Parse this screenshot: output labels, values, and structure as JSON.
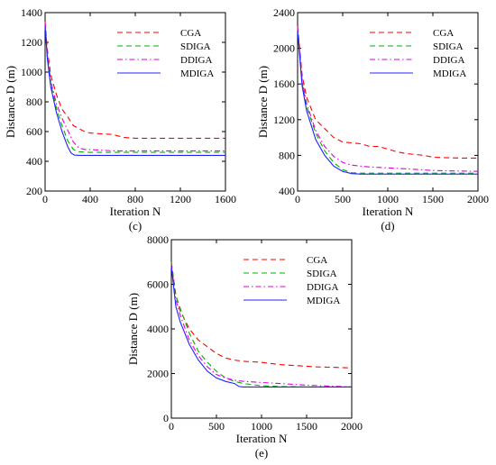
{
  "chart_data": [
    {
      "type": "line",
      "panel_label": "(c)",
      "xlabel": "Iteration N",
      "ylabel": "Distance D (m)",
      "xlim": [
        0,
        1600
      ],
      "ylim": [
        200,
        1400
      ],
      "xticks": [
        0,
        400,
        800,
        1200,
        1600
      ],
      "yticks": [
        200,
        400,
        600,
        800,
        1000,
        1200,
        1400
      ],
      "legend_position": "top-right",
      "series": [
        {
          "name": "CGA",
          "color": "#ff0000",
          "style": "dashed",
          "x": [
            0,
            20,
            50,
            100,
            150,
            200,
            250,
            300,
            350,
            400,
            500,
            600,
            700,
            800,
            1000,
            1200,
            1400,
            1600
          ],
          "y": [
            1340,
            1150,
            980,
            850,
            750,
            700,
            640,
            620,
            600,
            590,
            585,
            580,
            560,
            555,
            555,
            555,
            555,
            555
          ]
        },
        {
          "name": "SDIGA",
          "color": "#00b000",
          "style": "dashed",
          "x": [
            0,
            20,
            50,
            100,
            150,
            200,
            250,
            300,
            350,
            400,
            500,
            600,
            800,
            1000,
            1600
          ],
          "y": [
            1320,
            1100,
            920,
            760,
            640,
            540,
            480,
            465,
            462,
            460,
            460,
            460,
            460,
            460,
            460
          ]
        },
        {
          "name": "DDIGA",
          "color": "#e000e0",
          "style": "dashdot",
          "x": [
            0,
            20,
            50,
            100,
            150,
            200,
            250,
            300,
            350,
            400,
            500,
            600,
            800,
            1000,
            1600
          ],
          "y": [
            1330,
            1120,
            940,
            790,
            690,
            610,
            530,
            490,
            480,
            478,
            475,
            470,
            470,
            470,
            470
          ]
        },
        {
          "name": "MDIGA",
          "color": "#2020ff",
          "style": "solid",
          "x": [
            0,
            20,
            50,
            100,
            150,
            200,
            230,
            260,
            300,
            400,
            600,
            800,
            1000,
            1600
          ],
          "y": [
            1310,
            1090,
            900,
            730,
            600,
            500,
            455,
            442,
            440,
            440,
            440,
            440,
            440,
            440
          ]
        }
      ]
    },
    {
      "type": "line",
      "panel_label": "(d)",
      "xlabel": "Iteration N",
      "ylabel": "Distance D (m)",
      "xlim": [
        0,
        2000
      ],
      "ylim": [
        400,
        2400
      ],
      "xticks": [
        0,
        500,
        1000,
        1500,
        2000
      ],
      "yticks": [
        400,
        800,
        1200,
        1600,
        2000,
        2400
      ],
      "legend_position": "top-right",
      "series": [
        {
          "name": "CGA",
          "color": "#ff0000",
          "style": "dashed",
          "x": [
            0,
            50,
            100,
            200,
            300,
            400,
            500,
            600,
            700,
            800,
            900,
            1000,
            1100,
            1200,
            1300,
            1400,
            1500,
            1600,
            1800,
            2000
          ],
          "y": [
            2250,
            1700,
            1450,
            1200,
            1100,
            1000,
            950,
            940,
            930,
            900,
            900,
            870,
            840,
            820,
            810,
            800,
            780,
            775,
            770,
            770
          ]
        },
        {
          "name": "SDIGA",
          "color": "#00b000",
          "style": "dashed",
          "x": [
            0,
            50,
            100,
            200,
            300,
            400,
            500,
            600,
            700,
            800,
            1000,
            1500,
            2000
          ],
          "y": [
            2230,
            1620,
            1350,
            1050,
            850,
            720,
            640,
            605,
            600,
            600,
            600,
            600,
            600
          ]
        },
        {
          "name": "DDIGA",
          "color": "#e000e0",
          "style": "dashdot",
          "x": [
            0,
            50,
            100,
            200,
            300,
            400,
            500,
            600,
            700,
            800,
            1000,
            1200,
            1500,
            2000
          ],
          "y": [
            2240,
            1640,
            1380,
            1080,
            900,
            790,
            720,
            690,
            680,
            670,
            660,
            650,
            630,
            620
          ]
        },
        {
          "name": "MDIGA",
          "color": "#2020ff",
          "style": "solid",
          "x": [
            0,
            50,
            100,
            200,
            300,
            400,
            500,
            600,
            700,
            800,
            1000,
            1500,
            2000
          ],
          "y": [
            2200,
            1580,
            1300,
            980,
            800,
            680,
            620,
            595,
            590,
            590,
            590,
            590,
            590
          ]
        }
      ]
    },
    {
      "type": "line",
      "panel_label": "(e)",
      "xlabel": "Iteration N",
      "ylabel": "Distance D (m)",
      "xlim": [
        0,
        2000
      ],
      "ylim": [
        0,
        8000
      ],
      "xticks": [
        0,
        500,
        1000,
        1500,
        2000
      ],
      "yticks": [
        0,
        2000,
        4000,
        6000,
        8000
      ],
      "legend_position": "top-right",
      "series": [
        {
          "name": "CGA",
          "color": "#ff0000",
          "style": "dashed",
          "x": [
            0,
            50,
            100,
            200,
            300,
            400,
            500,
            600,
            700,
            800,
            1000,
            1200,
            1400,
            1600,
            1800,
            2000
          ],
          "y": [
            7000,
            5500,
            4800,
            4000,
            3500,
            3200,
            2900,
            2700,
            2600,
            2550,
            2500,
            2400,
            2350,
            2300,
            2280,
            2250
          ]
        },
        {
          "name": "SDIGA",
          "color": "#00b000",
          "style": "dashed",
          "x": [
            0,
            50,
            100,
            200,
            300,
            400,
            500,
            600,
            700,
            800,
            1000,
            1200,
            1500,
            2000
          ],
          "y": [
            7000,
            5500,
            4900,
            3800,
            3000,
            2500,
            2100,
            1800,
            1650,
            1550,
            1450,
            1420,
            1400,
            1400
          ]
        },
        {
          "name": "DDIGA",
          "color": "#e000e0",
          "style": "dashdot",
          "x": [
            0,
            50,
            100,
            200,
            300,
            400,
            500,
            600,
            700,
            800,
            1000,
            1200,
            1500,
            2000
          ],
          "y": [
            6900,
            5300,
            4600,
            3500,
            2800,
            2300,
            1950,
            1800,
            1700,
            1650,
            1600,
            1550,
            1480,
            1400
          ]
        },
        {
          "name": "MDIGA",
          "color": "#2020ff",
          "style": "solid",
          "x": [
            0,
            50,
            100,
            200,
            300,
            400,
            500,
            600,
            700,
            750,
            800,
            1000,
            1500,
            2000
          ],
          "y": [
            6800,
            5000,
            4300,
            3300,
            2600,
            2100,
            1800,
            1650,
            1550,
            1420,
            1400,
            1400,
            1400,
            1400
          ]
        }
      ]
    }
  ]
}
